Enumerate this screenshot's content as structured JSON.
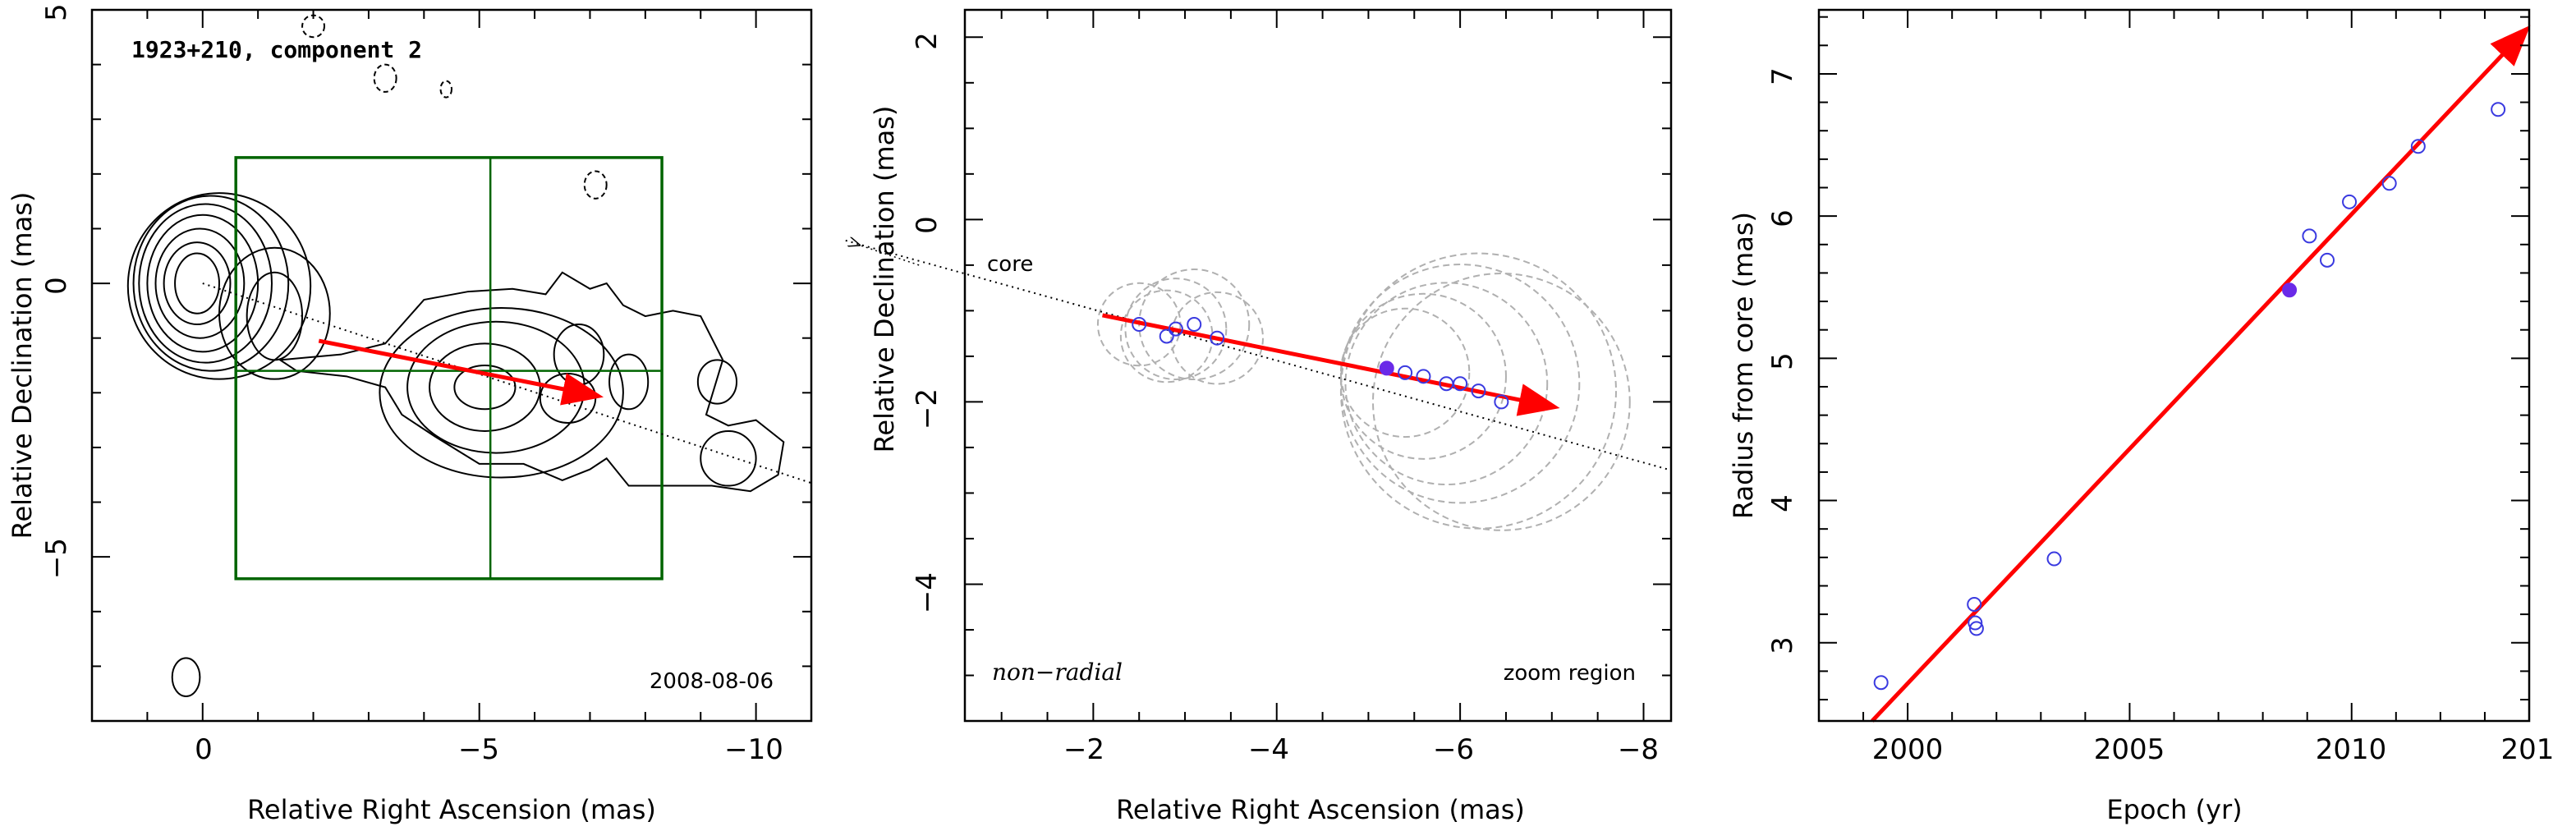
{
  "chart_data": [
    {
      "type": "contour",
      "title": "1923+210, component 2",
      "date_label": "2008-08-06",
      "xlabel": "Relative Right Ascension (mas)",
      "ylabel": "Relative Declination (mas)",
      "xlim": [
        2,
        -11
      ],
      "ylim": [
        -8,
        5
      ],
      "x_tick_labels": [
        "0",
        "−5",
        "−10"
      ],
      "y_tick_labels": [
        "−5",
        "0",
        "5"
      ],
      "grid": false,
      "contours": [
        {
          "kind": "ellipse",
          "cx": 0.1,
          "cy": 0,
          "rx": 0.4,
          "ry": 0.55,
          "style": "solid"
        },
        {
          "kind": "ellipse",
          "cx": 0.1,
          "cy": 0,
          "rx": 0.6,
          "ry": 0.75,
          "style": "solid"
        },
        {
          "kind": "ellipse",
          "cx": 0.05,
          "cy": 0,
          "rx": 0.8,
          "ry": 1.0,
          "style": "solid"
        },
        {
          "kind": "ellipse",
          "cx": 0.0,
          "cy": 0,
          "rx": 1.0,
          "ry": 1.25,
          "style": "solid"
        },
        {
          "kind": "ellipse",
          "cx": -0.05,
          "cy": 0,
          "rx": 1.2,
          "ry": 1.45,
          "style": "solid"
        },
        {
          "kind": "ellipse",
          "cx": -0.15,
          "cy": 0,
          "rx": 1.4,
          "ry": 1.6,
          "style": "solid"
        },
        {
          "kind": "ellipse",
          "cx": -0.3,
          "cy": -0.05,
          "rx": 1.65,
          "ry": 1.7,
          "style": "solid"
        },
        {
          "kind": "ellipse",
          "cx": -1.3,
          "cy": -0.6,
          "rx": 0.5,
          "ry": 0.8,
          "style": "solid"
        },
        {
          "kind": "ellipse",
          "cx": -1.3,
          "cy": -0.55,
          "rx": 1.0,
          "ry": 1.2,
          "style": "solid"
        },
        {
          "kind": "ellipse",
          "cx": -5.1,
          "cy": -1.9,
          "rx": 0.55,
          "ry": 0.4,
          "style": "solid"
        },
        {
          "kind": "ellipse",
          "cx": -5.1,
          "cy": -1.9,
          "rx": 1.0,
          "ry": 0.8,
          "style": "solid"
        },
        {
          "kind": "ellipse",
          "cx": -5.3,
          "cy": -1.9,
          "rx": 1.6,
          "ry": 1.2,
          "style": "solid"
        },
        {
          "kind": "ellipse",
          "cx": -5.4,
          "cy": -2.0,
          "rx": 2.2,
          "ry": 1.55,
          "style": "solid"
        },
        {
          "kind": "ellipse",
          "cx": -6.6,
          "cy": -2.1,
          "rx": 0.5,
          "ry": 0.45,
          "style": "solid"
        },
        {
          "kind": "ellipse",
          "cx": -6.8,
          "cy": -1.3,
          "rx": 0.45,
          "ry": 0.55,
          "style": "solid"
        },
        {
          "kind": "ellipse",
          "cx": -7.7,
          "cy": -1.8,
          "rx": 0.35,
          "ry": 0.5,
          "style": "solid"
        },
        {
          "kind": "ellipse",
          "cx": -9.3,
          "cy": -1.8,
          "rx": 0.35,
          "ry": 0.4,
          "style": "solid"
        },
        {
          "kind": "ellipse",
          "cx": -9.5,
          "cy": -3.2,
          "rx": 0.5,
          "ry": 0.5,
          "style": "solid"
        },
        {
          "kind": "ellipse",
          "cx": 0.3,
          "cy": -7.2,
          "rx": 0.25,
          "ry": 0.35,
          "style": "solid"
        },
        {
          "kind": "ellipse",
          "cx": -2.0,
          "cy": 4.7,
          "rx": 0.2,
          "ry": 0.2,
          "style": "dashed"
        },
        {
          "kind": "ellipse",
          "cx": -3.3,
          "cy": 3.75,
          "rx": 0.2,
          "ry": 0.25,
          "style": "dashed"
        },
        {
          "kind": "ellipse",
          "cx": -4.4,
          "cy": 3.55,
          "rx": 0.1,
          "ry": 0.15,
          "style": "dashed"
        },
        {
          "kind": "ellipse",
          "cx": -7.1,
          "cy": 1.8,
          "rx": 0.2,
          "ry": 0.25,
          "style": "dashed"
        }
      ],
      "jet_outline": [
        [
          -1.4,
          -1.4
        ],
        [
          -2.5,
          -1.3
        ],
        [
          -3.3,
          -1.1
        ],
        [
          -4.0,
          -0.3
        ],
        [
          -4.8,
          -0.15
        ],
        [
          -5.6,
          -0.1
        ],
        [
          -6.2,
          -0.2
        ],
        [
          -6.5,
          0.2
        ],
        [
          -7.0,
          -0.1
        ],
        [
          -7.3,
          0.0
        ],
        [
          -7.6,
          -0.4
        ],
        [
          -8.0,
          -0.6
        ],
        [
          -8.5,
          -0.5
        ],
        [
          -9.0,
          -0.6
        ],
        [
          -9.4,
          -1.4
        ],
        [
          -9.1,
          -2.4
        ],
        [
          -9.5,
          -2.6
        ],
        [
          -10.0,
          -2.5
        ],
        [
          -10.5,
          -2.9
        ],
        [
          -10.4,
          -3.5
        ],
        [
          -9.9,
          -3.8
        ],
        [
          -9.2,
          -3.7
        ],
        [
          -8.5,
          -3.7
        ],
        [
          -7.7,
          -3.7
        ],
        [
          -7.3,
          -3.2
        ],
        [
          -7.0,
          -3.4
        ],
        [
          -6.5,
          -3.6
        ],
        [
          -5.8,
          -3.3
        ],
        [
          -5.0,
          -3.3
        ],
        [
          -4.2,
          -2.8
        ],
        [
          -3.6,
          -2.4
        ],
        [
          -3.3,
          -1.9
        ],
        [
          -2.6,
          -1.7
        ],
        [
          -1.7,
          -1.6
        ]
      ],
      "dotted_line": {
        "from": [
          0,
          0
        ],
        "to": [
          -11,
          -3.65
        ]
      },
      "arrow": {
        "from": [
          -2.1,
          -1.05
        ],
        "to": [
          -7.1,
          -2.05
        ],
        "color": "#ff0000"
      },
      "zoom_box": {
        "x": [
          -0.6,
          -8.3
        ],
        "y": [
          2.3,
          -5.4
        ],
        "color": "#006400"
      },
      "zoom_crosshair": {
        "x": -5.2,
        "y": -1.6
      }
    },
    {
      "type": "scatter",
      "xlabel": "Relative Right Ascension (mas)",
      "ylabel": "Relative Declination (mas)",
      "xlim": [
        -0.6,
        -8.3
      ],
      "ylim": [
        -5.5,
        2.3
      ],
      "x_tick_labels": [
        "−2",
        "−4",
        "−6",
        "−8"
      ],
      "y_tick_labels": [
        "−4",
        "−2",
        "0",
        "2"
      ],
      "grid": false,
      "text_labels": {
        "core": "core",
        "motion": "non−radial",
        "region": "zoom region"
      },
      "points": [
        {
          "x": -2.5,
          "y": -1.15
        },
        {
          "x": -2.8,
          "y": -1.28
        },
        {
          "x": -2.9,
          "y": -1.2
        },
        {
          "x": -3.1,
          "y": -1.15
        },
        {
          "x": -3.35,
          "y": -1.3
        },
        {
          "x": -5.4,
          "y": -1.68
        },
        {
          "x": -5.6,
          "y": -1.72
        },
        {
          "x": -5.85,
          "y": -1.8
        },
        {
          "x": -6.0,
          "y": -1.8
        },
        {
          "x": -6.2,
          "y": -1.88
        },
        {
          "x": -6.45,
          "y": -2.0
        }
      ],
      "highlight_point": {
        "x": -5.2,
        "y": -1.63
      },
      "beam_circles": [
        {
          "cx": -2.5,
          "cy": -1.15,
          "r": 0.45
        },
        {
          "cx": -2.8,
          "cy": -1.28,
          "r": 0.5
        },
        {
          "cx": -2.9,
          "cy": -1.2,
          "r": 0.55
        },
        {
          "cx": -3.1,
          "cy": -1.15,
          "r": 0.6
        },
        {
          "cx": -3.35,
          "cy": -1.3,
          "r": 0.5
        },
        {
          "cx": -5.4,
          "cy": -1.68,
          "r": 0.7
        },
        {
          "cx": -5.6,
          "cy": -1.72,
          "r": 0.9
        },
        {
          "cx": -5.85,
          "cy": -1.8,
          "r": 1.1
        },
        {
          "cx": -6.0,
          "cy": -1.8,
          "r": 1.3
        },
        {
          "cx": -6.2,
          "cy": -1.88,
          "r": 1.5
        },
        {
          "cx": -6.45,
          "cy": -2.0,
          "r": 1.4
        }
      ],
      "dotted_line": {
        "from": [
          0.7,
          -0.23
        ],
        "to": [
          -8.3,
          -2.75
        ]
      },
      "core_arrow": {
        "from": [
          -0.1,
          -0.5
        ],
        "to": [
          0.55,
          -0.28
        ]
      },
      "arrow": {
        "from": [
          -2.1,
          -1.05
        ],
        "to": [
          -7.0,
          -2.05
        ],
        "color": "#ff0000"
      }
    },
    {
      "type": "scatter",
      "xlabel": "Epoch (yr)",
      "ylabel": "Radius from core (mas)",
      "xlim": [
        1998,
        2014
      ],
      "ylim": [
        2.45,
        7.45
      ],
      "x_tick_labels": [
        "2000",
        "2005",
        "2010",
        "201"
      ],
      "y_tick_labels": [
        "3",
        "4",
        "5",
        "6",
        "7"
      ],
      "grid": false,
      "x": [
        1999.4,
        2001.5,
        2001.52,
        2001.55,
        2003.3,
        2009.05,
        2009.45,
        2009.95,
        2010.85,
        2011.5,
        2013.3
      ],
      "y": [
        2.72,
        3.27,
        3.14,
        3.1,
        3.59,
        5.86,
        5.69,
        6.1,
        6.23,
        6.49,
        6.75
      ],
      "highlight_point": {
        "x": 2008.6,
        "y": 5.48
      },
      "fit_arrow": {
        "from": [
          1999.2,
          2.45
        ],
        "to": [
          2013.9,
          7.3
        ],
        "color": "#ff0000"
      }
    }
  ]
}
